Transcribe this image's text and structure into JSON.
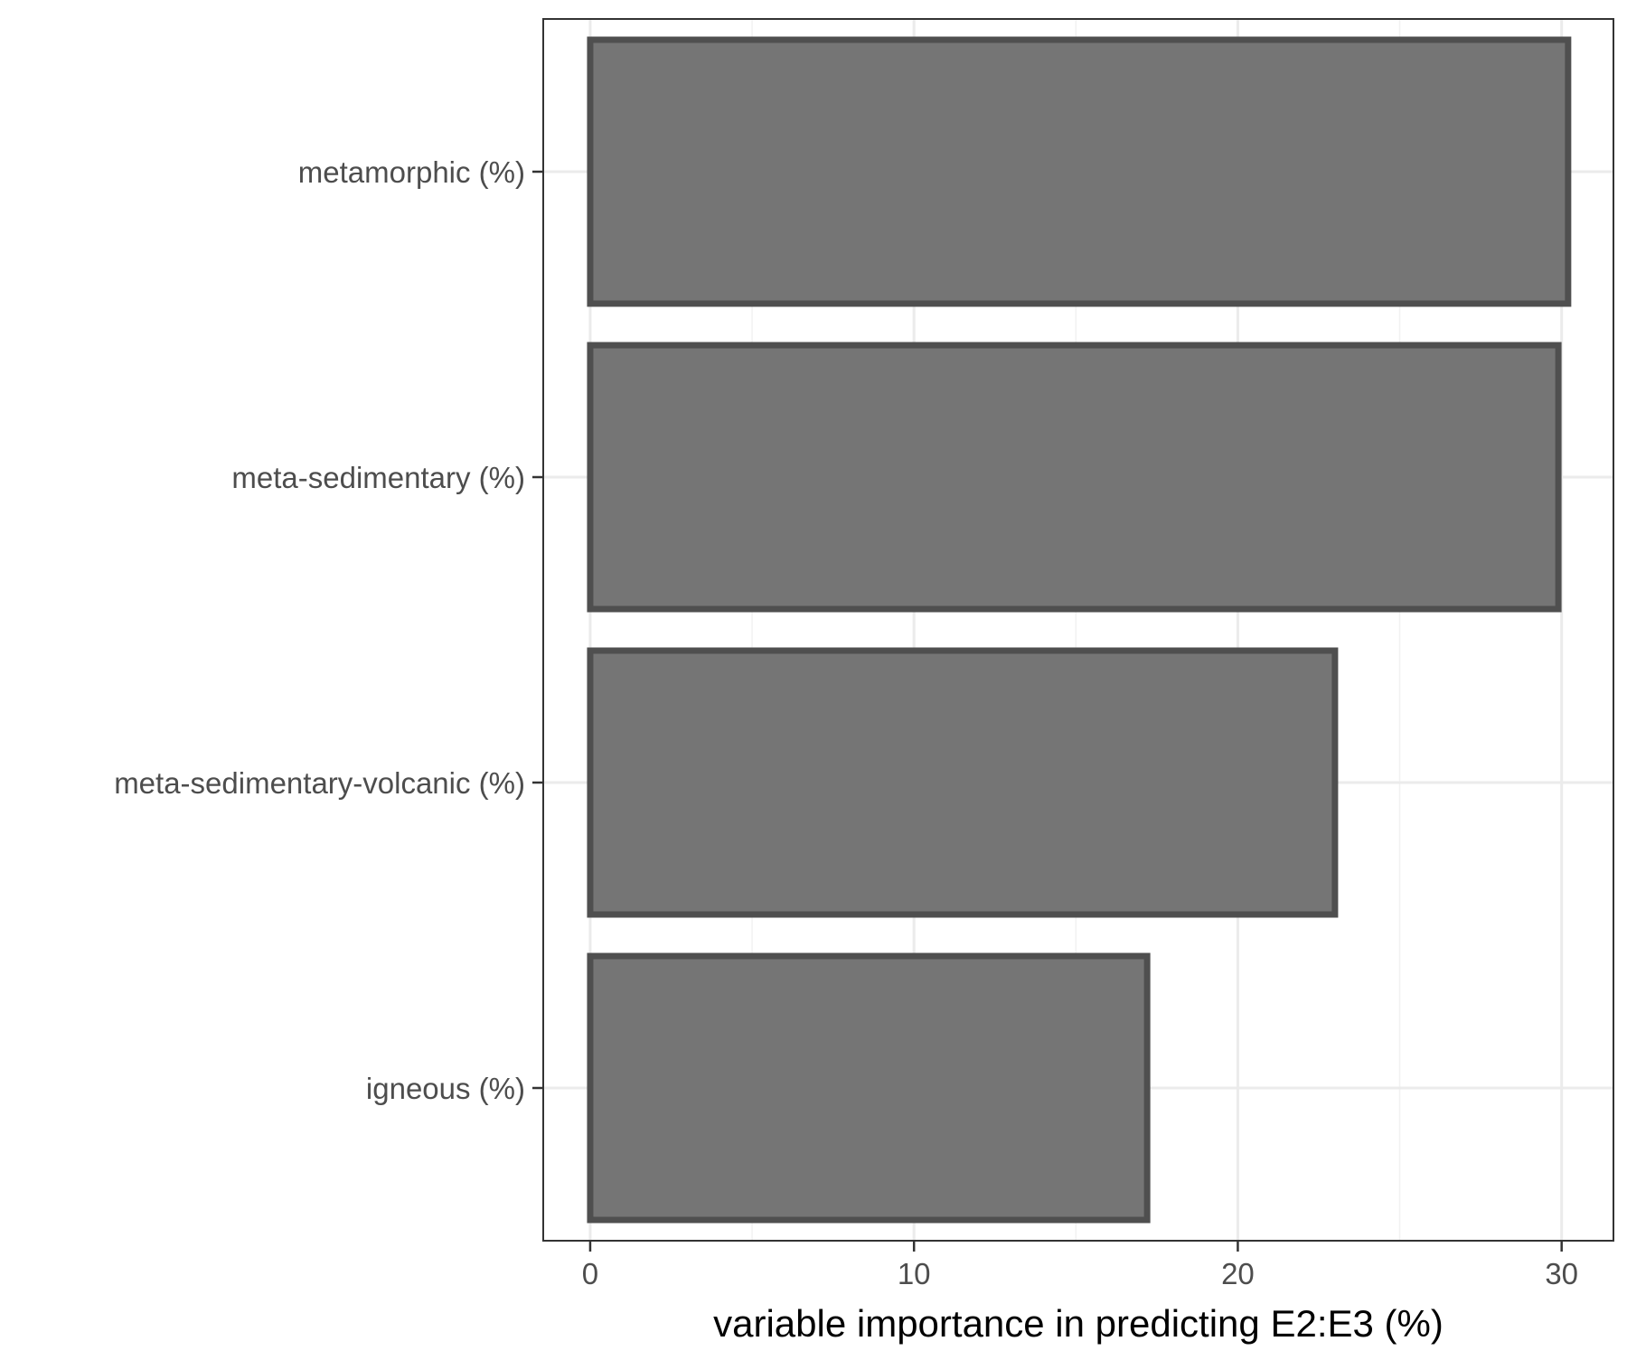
{
  "chart_data": {
    "type": "bar",
    "orientation": "horizontal",
    "categories": [
      "metamorphic (%)",
      "meta-sedimentary (%)",
      "meta-sedimentary-volcanic (%)",
      "igneous (%)"
    ],
    "values": [
      30.2,
      29.9,
      23,
      17.2
    ],
    "title": "",
    "xlabel": "variable importance in predicting E2:E3 (%)",
    "ylabel": "",
    "xlim": [
      -1.45,
      31.6
    ],
    "xticks": [
      "0",
      "10",
      "20",
      "30"
    ],
    "grid": true,
    "legend": "none",
    "colors": {
      "bar_fill": "#757575",
      "bar_stroke": "#4f4f4f",
      "grid_major": "#ebebeb",
      "grid_minor": "#f2f2f2",
      "panel_border": "#333333",
      "tick_text": "#4d4d4d",
      "axis_title": "#000000"
    }
  }
}
